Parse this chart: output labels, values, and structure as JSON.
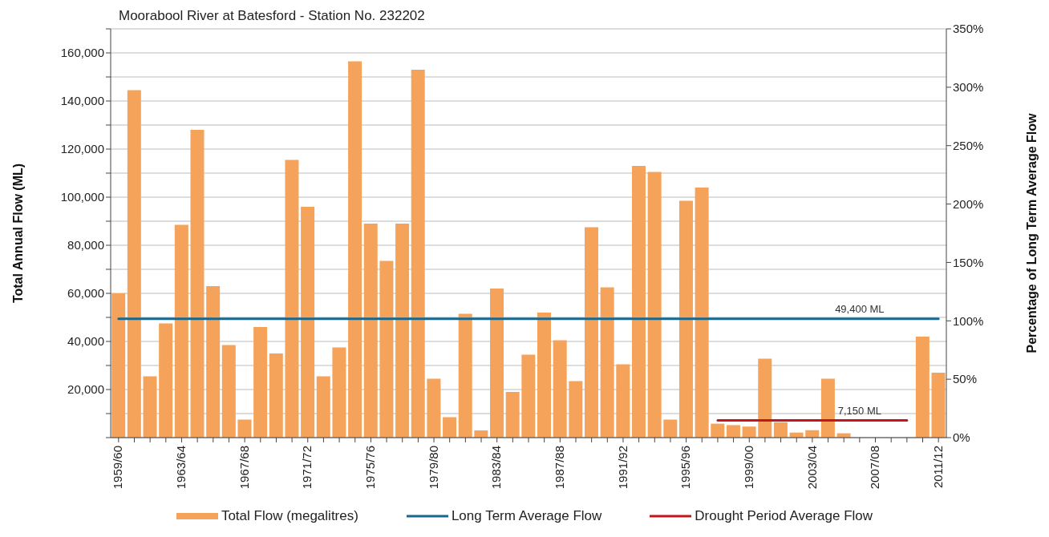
{
  "chart_data": {
    "type": "bar",
    "title": "Moorabool River at Batesford - Station No. 232202",
    "ylabel": "Total Annual Flow (ML)",
    "y2label": "Percentage of Long Term Average Flow",
    "categories": [
      "1959/60",
      null,
      null,
      null,
      "1963/64",
      null,
      null,
      null,
      "1967/68",
      null,
      null,
      null,
      "1971/72",
      null,
      null,
      null,
      "1975/76",
      null,
      null,
      null,
      "1979/80",
      null,
      null,
      null,
      "1983/84",
      null,
      null,
      null,
      "1987/88",
      null,
      null,
      null,
      "1991/92",
      null,
      null,
      null,
      "1995/96",
      null,
      null,
      null,
      "1999/00",
      null,
      null,
      null,
      "2003/04",
      null,
      null,
      null,
      "2007/08",
      null,
      null,
      null,
      "2011/12"
    ],
    "series": [
      {
        "name": "Total Flow (megalitres)",
        "color": "#f5a35a",
        "values": [
          60000,
          144500,
          25500,
          47500,
          88500,
          128000,
          63000,
          38500,
          7500,
          46000,
          35000,
          115500,
          96000,
          25500,
          37500,
          156500,
          89000,
          73500,
          89000,
          153000,
          24500,
          8500,
          51500,
          3000,
          62000,
          19000,
          34500,
          52000,
          40500,
          23500,
          87500,
          62500,
          30500,
          113000,
          110500,
          7500,
          98500,
          104000,
          5800,
          5200,
          4600,
          32800,
          6400,
          2100,
          3100,
          24500,
          1800,
          0,
          0,
          0,
          0,
          42000,
          27000
        ]
      },
      {
        "name": "Long Term Average Flow",
        "type": "line",
        "color": "#17688f",
        "values": [
          49400,
          49400,
          49400,
          49400,
          49400,
          49400,
          49400,
          49400,
          49400,
          49400,
          49400,
          49400,
          49400,
          49400,
          49400,
          49400,
          49400,
          49400,
          49400,
          49400,
          49400,
          49400,
          49400,
          49400,
          49400,
          49400,
          49400,
          49400,
          49400,
          49400,
          49400,
          49400,
          49400,
          49400,
          49400,
          49400,
          49400,
          49400,
          49400,
          49400,
          49400,
          49400,
          49400,
          49400,
          49400,
          49400,
          49400,
          49400,
          49400,
          49400,
          49400,
          49400,
          49400
        ]
      },
      {
        "name": "Drought Period Average Flow",
        "type": "line",
        "color": "#c1161f",
        "values": [
          null,
          null,
          null,
          null,
          null,
          null,
          null,
          null,
          null,
          null,
          null,
          null,
          null,
          null,
          null,
          null,
          null,
          null,
          null,
          null,
          null,
          null,
          null,
          null,
          null,
          null,
          null,
          null,
          null,
          null,
          null,
          null,
          null,
          null,
          null,
          null,
          null,
          null,
          7150,
          7150,
          7150,
          7150,
          7150,
          7150,
          7150,
          7150,
          7150,
          7150,
          7150,
          7150,
          7150,
          null,
          null
        ]
      }
    ],
    "annotations": [
      {
        "text": "49,400 ML",
        "y": 49400
      },
      {
        "text": "7,150 ML",
        "y": 7150
      }
    ],
    "ylim": [
      0,
      170000
    ],
    "yticks": [
      {
        "value": 0,
        "label": null
      },
      {
        "value": 10000,
        "label": null
      },
      {
        "value": 20000,
        "label": "20,000"
      },
      {
        "value": 30000,
        "label": null
      },
      {
        "value": 40000,
        "label": "40,000"
      },
      {
        "value": 50000,
        "label": null
      },
      {
        "value": 60000,
        "label": "60,000"
      },
      {
        "value": 70000,
        "label": null
      },
      {
        "value": 80000,
        "label": "80,000"
      },
      {
        "value": 90000,
        "label": null
      },
      {
        "value": 100000,
        "label": "100,000"
      },
      {
        "value": 110000,
        "label": null
      },
      {
        "value": 120000,
        "label": "120,000"
      },
      {
        "value": 130000,
        "label": null
      },
      {
        "value": 140000,
        "label": "140,000"
      },
      {
        "value": 150000,
        "label": null
      },
      {
        "value": 160000,
        "label": "160,000"
      },
      {
        "value": 170000,
        "label": null
      }
    ],
    "y2lim": [
      0,
      350
    ],
    "y2ticks": [
      {
        "value": 0,
        "label": "0%"
      },
      {
        "value": 50,
        "label": "50%"
      },
      {
        "value": 100,
        "label": "100%"
      },
      {
        "value": 150,
        "label": "150%"
      },
      {
        "value": 200,
        "label": "200%"
      },
      {
        "value": 250,
        "label": "250%"
      },
      {
        "value": 300,
        "label": "300%"
      },
      {
        "value": 350,
        "label": "350%"
      }
    ],
    "grid": "y",
    "legend": "bottom"
  }
}
